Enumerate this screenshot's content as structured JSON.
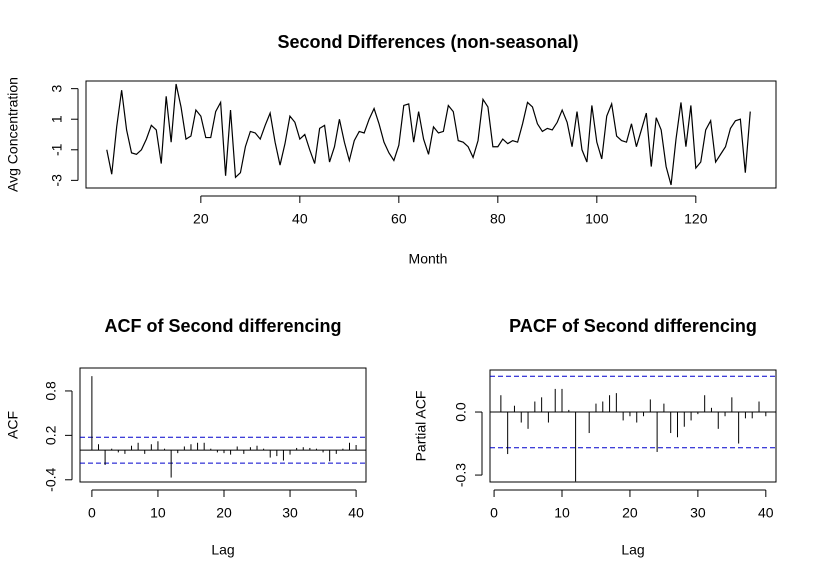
{
  "chart_data": [
    {
      "type": "line",
      "title": "Second Differences (non-seasonal)",
      "x_label": "Month",
      "y_label": "Avg Concentration",
      "x": [
        1,
        2,
        3,
        4,
        5,
        6,
        7,
        8,
        9,
        10,
        11,
        12,
        13,
        14,
        15,
        16,
        17,
        18,
        19,
        20,
        21,
        22,
        23,
        24,
        25,
        26,
        27,
        28,
        29,
        30,
        31,
        32,
        33,
        34,
        35,
        36,
        37,
        38,
        39,
        40,
        41,
        42,
        43,
        44,
        45,
        46,
        47,
        48,
        49,
        50,
        51,
        52,
        53,
        54,
        55,
        56,
        57,
        58,
        59,
        60,
        61,
        62,
        63,
        64,
        65,
        66,
        67,
        68,
        69,
        70,
        71,
        72,
        73,
        74,
        75,
        76,
        77,
        78,
        79,
        80,
        81,
        82,
        83,
        84,
        85,
        86,
        87,
        88,
        89,
        90,
        91,
        92,
        93,
        94,
        95,
        96,
        97,
        98,
        99,
        100,
        101,
        102,
        103,
        104,
        105,
        106,
        107,
        108,
        109,
        110,
        111,
        112,
        113,
        114,
        115,
        116,
        117,
        118,
        119,
        120,
        121,
        122,
        123,
        124,
        125,
        126,
        127,
        128,
        129,
        130,
        131
      ],
      "series": [
        {
          "color": "#000000",
          "values": [
            -1,
            -2.6,
            0.5,
            2.9,
            0.3,
            -1.2,
            -1.3,
            -1,
            -0.3,
            0.6,
            0.3,
            -1.9,
            2.5,
            -0.5,
            3.3,
            1.8,
            -0.3,
            -0.1,
            1.6,
            1.2,
            -0.2,
            -0.2,
            1.5,
            2.1,
            -2.7,
            1.6,
            -2.8,
            -2.5,
            -0.8,
            0.2,
            0.1,
            -0.3,
            0.6,
            1.4,
            -0.5,
            -2,
            -0.6,
            1.2,
            0.8,
            -0.3,
            0,
            -1,
            -1.9,
            0.4,
            0.6,
            -1.8,
            -0.8,
            1,
            -0.5,
            -1.7,
            -0.4,
            0.2,
            0.1,
            1,
            1.7,
            0.7,
            -0.5,
            -1.2,
            -1.7,
            -0.7,
            1.9,
            2,
            -0.5,
            1.5,
            -0.3,
            -1.3,
            0.5,
            0.1,
            0.2,
            1.9,
            1.5,
            -0.4,
            -0.5,
            -0.8,
            -1.5,
            -0.4,
            2.3,
            1.8,
            -0.8,
            -0.8,
            -0.3,
            -0.6,
            -0.4,
            -0.5,
            0.7,
            2.1,
            1.8,
            0.7,
            0.2,
            0.4,
            0.3,
            0.8,
            1.6,
            0.8,
            -0.8,
            1.5,
            -1,
            -1.8,
            1.9,
            -0.5,
            -1.6,
            1.2,
            2,
            -0.1,
            -0.4,
            -0.5,
            0.7,
            -0.8,
            0.3,
            1.4,
            -2.1,
            1.1,
            0.3,
            -2.1,
            -3.3,
            -0.3,
            2.1,
            -0.8,
            1.9,
            -2.2,
            -1.8,
            0.3,
            0.9,
            -1.8,
            -1.3,
            -0.8,
            0.4,
            0.9,
            1,
            -2.5,
            1.5
          ]
        }
      ],
      "xlim": [
        -3.2,
        136.2
      ],
      "xticks": [
        20,
        40,
        60,
        80,
        100,
        120
      ],
      "ylim": [
        -3.5,
        3.5
      ],
      "yticks": [
        -3,
        -1,
        1,
        3
      ]
    },
    {
      "type": "stem",
      "title": "ACF of Second differencing",
      "x_label": "Lag",
      "y_label": "ACF",
      "x": [
        0,
        1,
        2,
        3,
        4,
        5,
        6,
        7,
        8,
        9,
        10,
        11,
        12,
        13,
        14,
        15,
        16,
        17,
        18,
        19,
        20,
        21,
        22,
        23,
        24,
        25,
        26,
        27,
        28,
        29,
        30,
        31,
        32,
        33,
        34,
        35,
        36,
        37,
        38,
        39,
        40
      ],
      "series": [
        {
          "color": "#000000",
          "values": [
            1,
            0.08,
            -0.2,
            0.02,
            -0.03,
            -0.05,
            0.06,
            0.1,
            -0.05,
            0.08,
            0.12,
            0.02,
            -0.37,
            -0.04,
            0.05,
            0.08,
            0.1,
            0.1,
            0.02,
            -0.03,
            -0.04,
            -0.06,
            0.05,
            -0.05,
            0.04,
            0.06,
            0.02,
            -0.1,
            -0.08,
            -0.14,
            -0.06,
            0.03,
            0.04,
            0.03,
            0.02,
            -0.03,
            -0.15,
            -0.05,
            0.02,
            0.1,
            0.07
          ]
        }
      ],
      "confidence_lines": [
        -0.175,
        0.175
      ],
      "confidence_color": "#0000cc",
      "xlim": [
        -1.8,
        41.5
      ],
      "xticks": [
        0,
        10,
        20,
        30,
        40
      ],
      "ylim": [
        -0.43,
        1.11
      ],
      "yticks": [
        -0.4,
        0.2,
        0.8
      ]
    },
    {
      "type": "stem",
      "title": "PACF of Second differencing",
      "x_label": "Lag",
      "y_label": "Partial ACF",
      "x": [
        1,
        2,
        3,
        4,
        5,
        6,
        7,
        8,
        9,
        10,
        11,
        12,
        13,
        14,
        15,
        16,
        17,
        18,
        19,
        20,
        21,
        22,
        23,
        24,
        25,
        26,
        27,
        28,
        29,
        30,
        31,
        32,
        33,
        34,
        35,
        36,
        37,
        38,
        39,
        40
      ],
      "series": [
        {
          "color": "#000000",
          "values": [
            0.08,
            -0.2,
            0.03,
            -0.05,
            -0.08,
            0.05,
            0.07,
            -0.05,
            0.11,
            0.11,
            0.01,
            -0.33,
            0,
            -0.1,
            0.04,
            0.05,
            0.08,
            0.09,
            -0.04,
            -0.02,
            -0.05,
            -0.02,
            0.06,
            -0.19,
            0.04,
            -0.1,
            -0.12,
            -0.07,
            -0.04,
            -0.01,
            0.08,
            0.02,
            -0.08,
            -0.02,
            0.07,
            -0.15,
            -0.03,
            -0.03,
            0.05,
            -0.02
          ]
        }
      ],
      "confidence_lines": [
        -0.17,
        0.17
      ],
      "confidence_color": "#0000cc",
      "xlim": [
        -0.6,
        41.5
      ],
      "xticks": [
        0,
        10,
        20,
        30,
        40
      ],
      "ylim": [
        -0.333,
        0.2
      ],
      "yticks": [
        -0.3,
        {
          "value": 0,
          "label": "0.0"
        }
      ]
    }
  ]
}
